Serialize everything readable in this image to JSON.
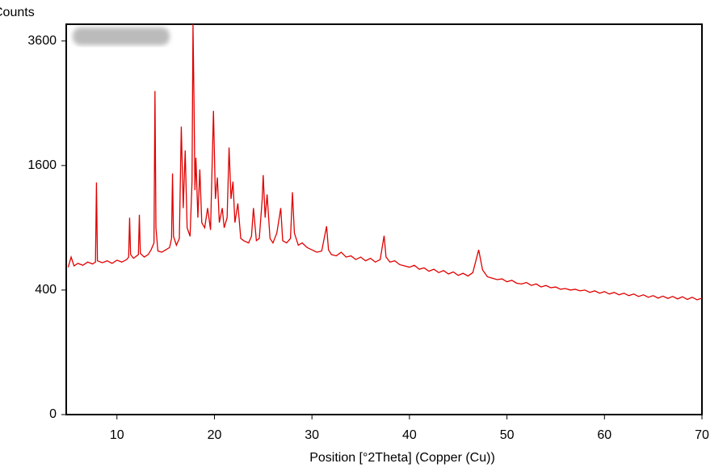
{
  "chart_data": {
    "type": "line",
    "y_label": "Counts",
    "x_label": "Position [°2Theta] (Copper (Cu))",
    "yscale": "sqrt",
    "color": "#e00000",
    "xlim": [
      4.8,
      70
    ],
    "xticks": [
      10,
      20,
      30,
      40,
      50,
      60,
      70
    ],
    "ylim": [
      0,
      3930
    ],
    "yticks": [
      0,
      400,
      1600,
      3600
    ],
    "x": [
      5.0,
      5.3,
      5.6,
      6.0,
      6.5,
      7.0,
      7.5,
      7.8,
      7.9,
      8.0,
      8.5,
      9.0,
      9.5,
      10.0,
      10.5,
      11.0,
      11.2,
      11.3,
      11.4,
      11.7,
      12.2,
      12.3,
      12.4,
      12.8,
      13.2,
      13.5,
      13.8,
      13.9,
      14.0,
      14.2,
      14.6,
      15.0,
      15.4,
      15.6,
      15.7,
      15.8,
      16.1,
      16.4,
      16.6,
      16.8,
      17.0,
      17.2,
      17.5,
      17.7,
      17.8,
      17.9,
      18.0,
      18.1,
      18.3,
      18.5,
      18.7,
      19.0,
      19.3,
      19.6,
      19.9,
      20.1,
      20.3,
      20.5,
      20.8,
      21.0,
      21.3,
      21.5,
      21.7,
      21.9,
      22.1,
      22.4,
      22.7,
      23.0,
      23.5,
      23.8,
      24.0,
      24.3,
      24.6,
      24.9,
      25.0,
      25.2,
      25.4,
      25.7,
      26.0,
      26.4,
      26.8,
      27.0,
      27.4,
      27.8,
      28.0,
      28.2,
      28.6,
      29.0,
      29.5,
      30.0,
      30.5,
      31.0,
      31.5,
      31.7,
      32.0,
      32.5,
      33.0,
      33.5,
      34.0,
      34.5,
      35.0,
      35.5,
      36.0,
      36.5,
      37.0,
      37.4,
      37.6,
      38.0,
      38.5,
      39.0,
      39.5,
      40.0,
      40.5,
      41.0,
      41.5,
      42.0,
      42.5,
      43.0,
      43.5,
      44.0,
      44.5,
      45.0,
      45.5,
      46.0,
      46.5,
      47.1,
      47.5,
      48.0,
      48.5,
      49.0,
      49.5,
      50.0,
      50.5,
      51.0,
      51.5,
      52.0,
      52.5,
      53.0,
      53.5,
      54.0,
      54.5,
      55.0,
      55.5,
      56.0,
      56.5,
      57.0,
      57.5,
      58.0,
      58.5,
      59.0,
      59.5,
      60.0,
      60.5,
      61.0,
      61.5,
      62.0,
      62.5,
      63.0,
      63.5,
      64.0,
      64.5,
      65.0,
      65.5,
      66.0,
      66.5,
      67.0,
      67.5,
      68.0,
      68.5,
      69.0,
      69.5,
      70.0
    ],
    "values": [
      560,
      640,
      570,
      590,
      575,
      600,
      585,
      600,
      1390,
      610,
      595,
      610,
      590,
      615,
      600,
      620,
      640,
      1000,
      660,
      630,
      660,
      1030,
      670,
      640,
      660,
      700,
      760,
      2700,
      900,
      690,
      680,
      700,
      720,
      800,
      1500,
      820,
      740,
      800,
      2140,
      1100,
      1800,
      900,
      820,
      1400,
      3930,
      2600,
      1300,
      1700,
      1000,
      1550,
      950,
      900,
      1100,
      880,
      2380,
      1200,
      1450,
      950,
      1100,
      900,
      1000,
      1840,
      1200,
      1400,
      950,
      1150,
      800,
      780,
      760,
      820,
      1100,
      780,
      800,
      1200,
      1480,
      1000,
      1250,
      800,
      760,
      850,
      1100,
      780,
      760,
      800,
      1275,
      850,
      740,
      760,
      720,
      700,
      680,
      690,
      915,
      700,
      660,
      650,
      680,
      640,
      650,
      620,
      640,
      610,
      630,
      600,
      620,
      825,
      640,
      600,
      610,
      580,
      570,
      560,
      575,
      545,
      555,
      530,
      545,
      520,
      535,
      510,
      525,
      500,
      515,
      495,
      520,
      700,
      540,
      490,
      480,
      470,
      475,
      455,
      465,
      445,
      440,
      450,
      430,
      440,
      420,
      430,
      415,
      420,
      405,
      410,
      400,
      405,
      395,
      400,
      385,
      395,
      380,
      390,
      375,
      385,
      370,
      380,
      365,
      375,
      360,
      370,
      355,
      365,
      350,
      362,
      348,
      360,
      345,
      358,
      342,
      355,
      340,
      350
    ]
  }
}
